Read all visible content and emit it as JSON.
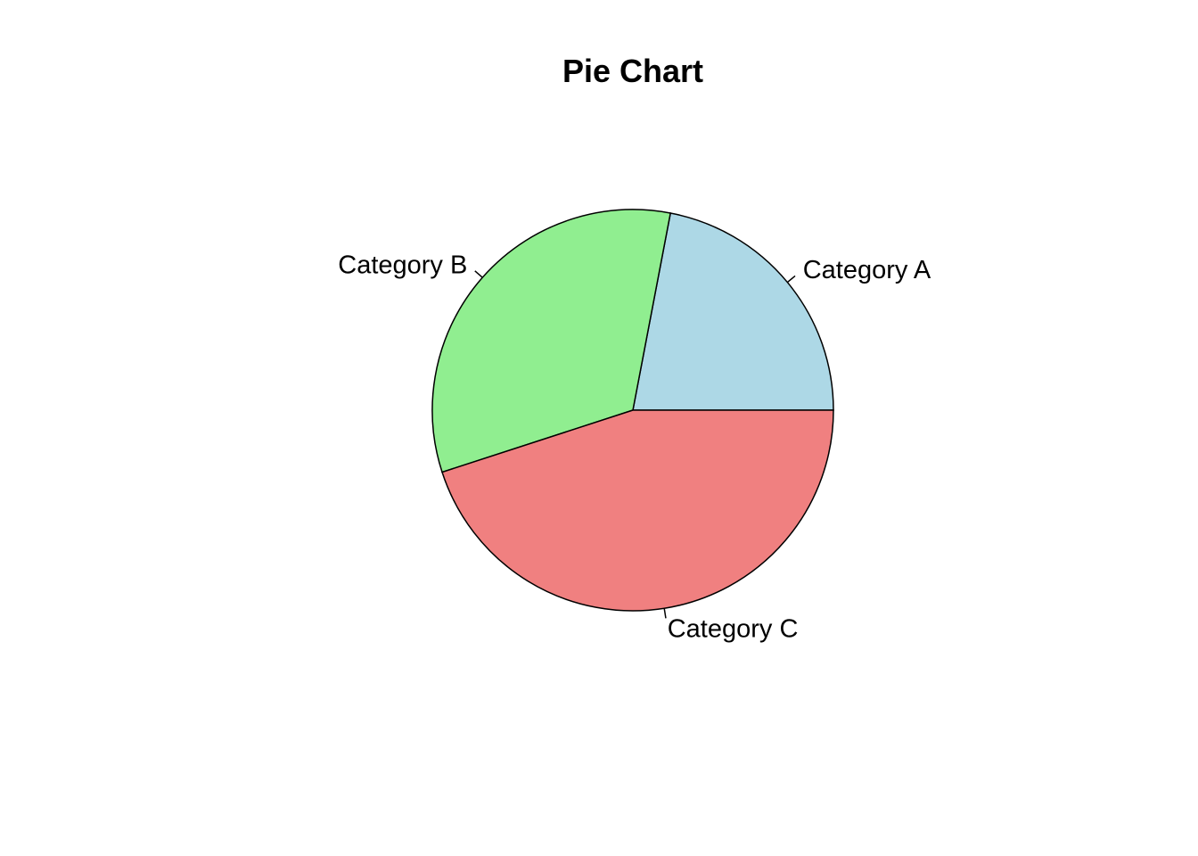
{
  "chart_data": {
    "type": "pie",
    "title": "Pie Chart",
    "start_angle_deg": 0,
    "direction": "counterclockwise",
    "slices": [
      {
        "label": "Category A",
        "value": 22,
        "color": "#ADD8E6"
      },
      {
        "label": "Category B",
        "value": 33,
        "color": "#90EE90"
      },
      {
        "label": "Category C",
        "value": 45,
        "color": "#F08080"
      }
    ]
  }
}
